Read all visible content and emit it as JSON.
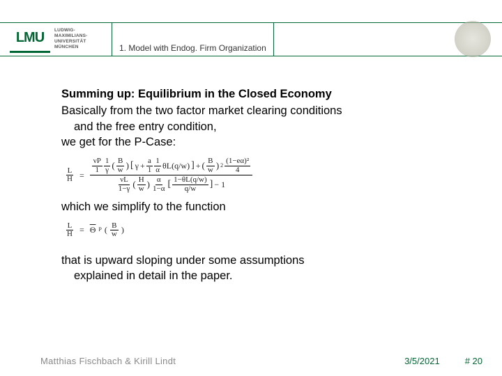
{
  "header": {
    "logo_text": "LMU",
    "uni_line1": "LUDWIG-",
    "uni_line2": "MAXIMILIANS-",
    "uni_line3": "UNIVERSITÄT",
    "uni_line4": "MÜNCHEN",
    "section": "1. Model with Endog. Firm Organization"
  },
  "body": {
    "heading": "Summing up: Equilibrium in the Closed Economy",
    "p1a": "Basically from the two factor market clearing conditions",
    "p1b": "and the free entry condition,",
    "p2": "we get for the P-Case:",
    "p3": "which we simplify to the function",
    "p4a": "that is upward sloping under some assumptions",
    "p4b": "explained in detail in the paper."
  },
  "formula1": {
    "lhs_num": "L",
    "lhs_den": "H",
    "num_f1n": "νP",
    "num_f1d": "1",
    "num_f2n": "1",
    "num_f2d": "γ",
    "pB": "B",
    "pw": "w",
    "gamma": "γ",
    "plus": "+",
    "fa_n": "a",
    "fa_d": "1",
    "fa2_n": "1",
    "fa2_d": "α",
    "theta": "θL(q/w)",
    "tail_num": "(1−eα)²",
    "tail_den": "4",
    "den_f1n": "νL",
    "den_f1d": "1−γ",
    "den_pH": "H",
    "den_pw": "w",
    "den_fa_n": "α",
    "den_fa_d": "1−α",
    "den_brkt_num": "1−θL(q/w)",
    "den_brkt_den": "q/w",
    "minus1": "− 1"
  },
  "formula2": {
    "lhs_num": "L",
    "lhs_den": "H",
    "eq": "=",
    "theta_bar": "Θ",
    "sub_p": "P",
    "lp": "(",
    "fn": "B",
    "fd": "w",
    "rp": ")"
  },
  "footer": {
    "authors": "Matthias Fischbach & Kirill Lindt",
    "date": "3/5/2021",
    "page": "# 20"
  },
  "colors": {
    "accent": "#006633",
    "text": "#000000",
    "muted": "#888888"
  }
}
